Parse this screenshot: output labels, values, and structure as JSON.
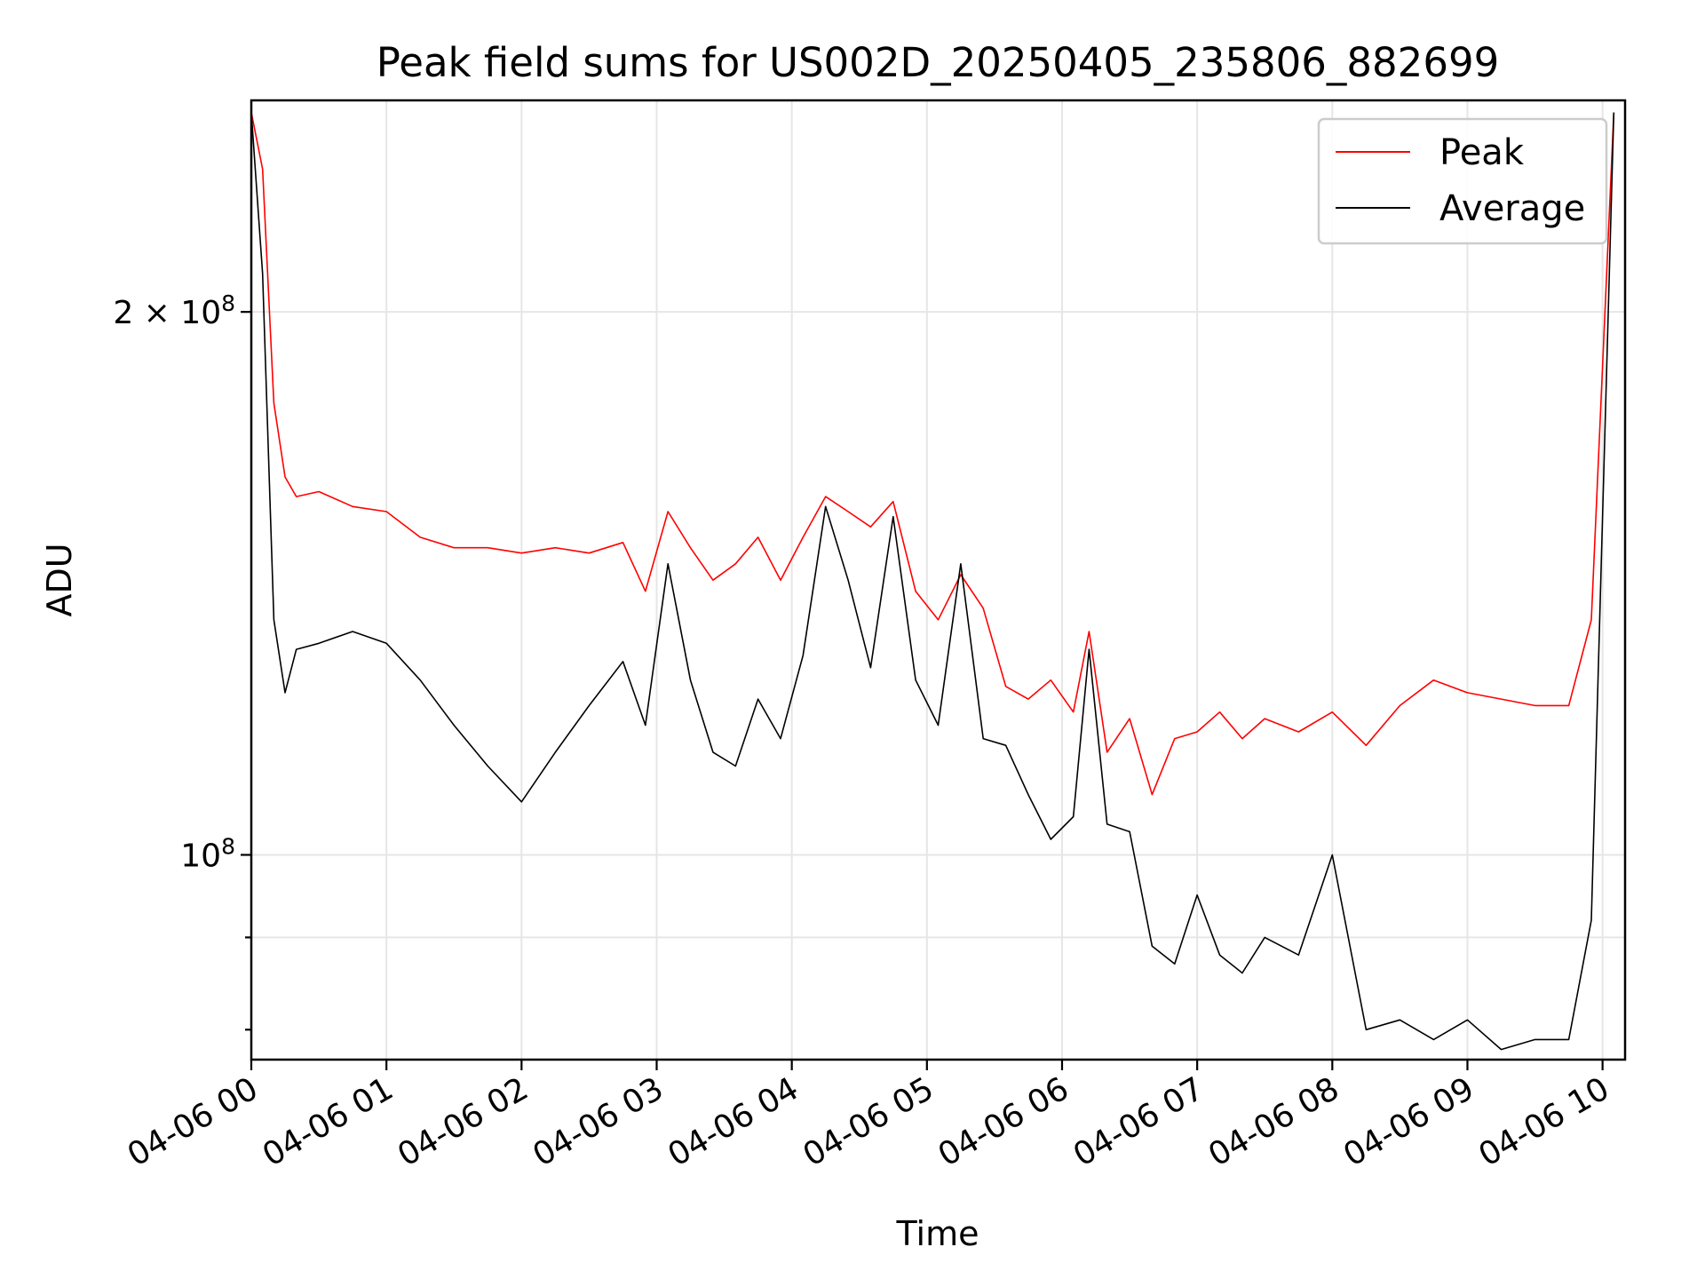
{
  "chart_data": {
    "type": "line",
    "title": "Peak field sums for US002D_20250405_235806_882699",
    "xlabel": "Time",
    "ylabel": "ADU",
    "y_scale": "log",
    "ylim": [
      77000000,
      262000000
    ],
    "xlim": [
      "04-06 00:00",
      "04-06 10:10"
    ],
    "grid": true,
    "legend_position": "top-right",
    "x_ticks": [
      "04-06 00",
      "04-06 01",
      "04-06 02",
      "04-06 03",
      "04-06 04",
      "04-06 05",
      "04-06 06",
      "04-06 07",
      "04-06 08",
      "04-06 09",
      "04-06 10"
    ],
    "y_ticks": [
      {
        "value": 100000000,
        "base": "10",
        "exp": "8",
        "mult": ""
      },
      {
        "value": 200000000,
        "base": "10",
        "exp": "8",
        "mult": "2 × "
      }
    ],
    "series": [
      {
        "name": "Peak",
        "color": "#ff0000",
        "x": [
          "04-06 00:00",
          "04-06 00:05",
          "04-06 00:10",
          "04-06 00:15",
          "04-06 00:20",
          "04-06 00:30",
          "04-06 00:45",
          "04-06 01:00",
          "04-06 01:15",
          "04-06 01:30",
          "04-06 01:45",
          "04-06 02:00",
          "04-06 02:15",
          "04-06 02:30",
          "04-06 02:45",
          "04-06 02:55",
          "04-06 03:05",
          "04-06 03:15",
          "04-06 03:25",
          "04-06 03:35",
          "04-06 03:45",
          "04-06 03:55",
          "04-06 04:05",
          "04-06 04:15",
          "04-06 04:25",
          "04-06 04:35",
          "04-06 04:45",
          "04-06 04:55",
          "04-06 05:05",
          "04-06 05:15",
          "04-06 05:25",
          "04-06 05:35",
          "04-06 05:45",
          "04-06 05:55",
          "04-06 06:05",
          "04-06 06:12",
          "04-06 06:20",
          "04-06 06:30",
          "04-06 06:40",
          "04-06 06:50",
          "04-06 07:00",
          "04-06 07:10",
          "04-06 07:20",
          "04-06 07:30",
          "04-06 07:45",
          "04-06 08:00",
          "04-06 08:15",
          "04-06 08:30",
          "04-06 08:45",
          "04-06 09:00",
          "04-06 09:15",
          "04-06 09:30",
          "04-06 09:45",
          "04-06 09:55",
          "04-06 10:05"
        ],
        "values": [
          258000000,
          240000000,
          178000000,
          162000000,
          158000000,
          159000000,
          156000000,
          155000000,
          150000000,
          148000000,
          148000000,
          147000000,
          148000000,
          147000000,
          149000000,
          140000000,
          155000000,
          148000000,
          142000000,
          145000000,
          150000000,
          142000000,
          150000000,
          158000000,
          155000000,
          152000000,
          157000000,
          140000000,
          135000000,
          143000000,
          137000000,
          124000000,
          122000000,
          125000000,
          120000000,
          133000000,
          114000000,
          119000000,
          108000000,
          116000000,
          117000000,
          120000000,
          116000000,
          119000000,
          117000000,
          120000000,
          115000000,
          121000000,
          125000000,
          123000000,
          122000000,
          121000000,
          121000000,
          135000000,
          258000000
        ]
      },
      {
        "name": "Average",
        "color": "#000000",
        "x": [
          "04-06 00:00",
          "04-06 00:05",
          "04-06 00:10",
          "04-06 00:15",
          "04-06 00:20",
          "04-06 00:30",
          "04-06 00:45",
          "04-06 01:00",
          "04-06 01:15",
          "04-06 01:30",
          "04-06 01:45",
          "04-06 02:00",
          "04-06 02:15",
          "04-06 02:30",
          "04-06 02:45",
          "04-06 02:55",
          "04-06 03:05",
          "04-06 03:15",
          "04-06 03:25",
          "04-06 03:35",
          "04-06 03:45",
          "04-06 03:55",
          "04-06 04:05",
          "04-06 04:15",
          "04-06 04:25",
          "04-06 04:35",
          "04-06 04:45",
          "04-06 04:55",
          "04-06 05:05",
          "04-06 05:15",
          "04-06 05:25",
          "04-06 05:35",
          "04-06 05:45",
          "04-06 05:55",
          "04-06 06:05",
          "04-06 06:12",
          "04-06 06:20",
          "04-06 06:30",
          "04-06 06:40",
          "04-06 06:50",
          "04-06 07:00",
          "04-06 07:10",
          "04-06 07:20",
          "04-06 07:30",
          "04-06 07:45",
          "04-06 08:00",
          "04-06 08:15",
          "04-06 08:30",
          "04-06 08:45",
          "04-06 09:00",
          "04-06 09:15",
          "04-06 09:30",
          "04-06 09:45",
          "04-06 09:55",
          "04-06 10:05"
        ],
        "values": [
          258000000,
          210000000,
          135000000,
          123000000,
          130000000,
          131000000,
          133000000,
          131000000,
          125000000,
          118000000,
          112000000,
          107000000,
          114000000,
          121000000,
          128000000,
          118000000,
          145000000,
          125000000,
          114000000,
          112000000,
          122000000,
          116000000,
          129000000,
          156000000,
          142000000,
          127000000,
          154000000,
          125000000,
          118000000,
          145000000,
          116000000,
          115000000,
          108000000,
          102000000,
          105000000,
          130000000,
          104000000,
          103000000,
          89000000,
          87000000,
          95000000,
          88000000,
          86000000,
          90000000,
          88000000,
          100000000,
          80000000,
          81000000,
          79000000,
          81000000,
          78000000,
          79000000,
          79000000,
          92000000,
          258000000
        ]
      }
    ]
  }
}
